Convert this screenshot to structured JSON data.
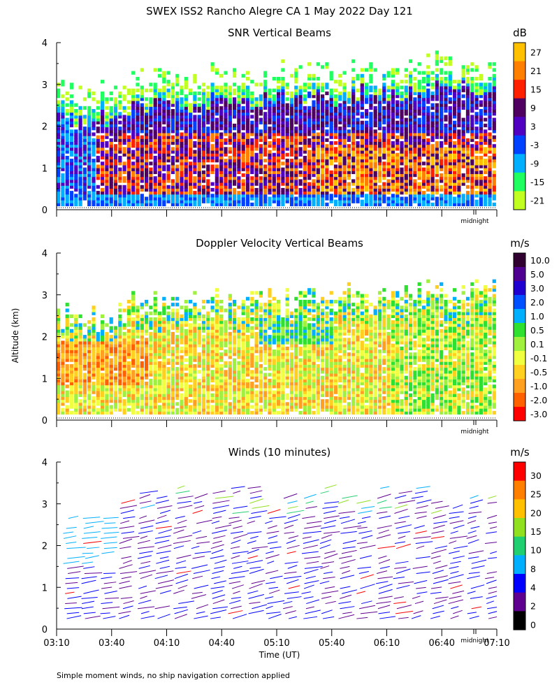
{
  "figure": {
    "title": "SWEX ISS2 Rancho Alegre CA    1 May 2022 Day 121",
    "shared_ylabel": "Altitude (km)",
    "xlabel": "Time (UT)",
    "midnight_label": "midnight",
    "footnote": "Simple moment winds, no ship navigation correction applied"
  },
  "chart_data": [
    {
      "type": "heatmap",
      "id": "snr",
      "title": "SNR Vertical Beams",
      "ylabel": "Altitude (km)",
      "ylim": [
        0,
        4
      ],
      "yticks": [
        "0",
        "1",
        "2",
        "3",
        "4"
      ],
      "xlim_minutes": [
        190,
        430
      ],
      "colorbar": {
        "unit": "dB",
        "labels": [
          "27",
          "21",
          "15",
          "9",
          "3",
          "-3",
          "-9",
          "-15",
          "-21"
        ],
        "colors": [
          "#ffc000",
          "#ff8000",
          "#ff2000",
          "#500060",
          "#5000c0",
          "#0040ff",
          "#00b0ff",
          "#20ff60",
          "#c0ff20"
        ]
      }
    },
    {
      "type": "heatmap",
      "id": "doppler",
      "title": "Doppler Velocity Vertical Beams",
      "ylabel": "Altitude (km)",
      "ylim": [
        0,
        4
      ],
      "yticks": [
        "0",
        "1",
        "2",
        "3",
        "4"
      ],
      "xlim_minutes": [
        190,
        430
      ],
      "colorbar": {
        "unit": "m/s",
        "labels": [
          "10.0",
          "5.0",
          "3.0",
          "2.0",
          "1.0",
          "0.5",
          "0.1",
          "-0.1",
          "-0.5",
          "-1.0",
          "-2.0",
          "-3.0"
        ],
        "colors": [
          "#300030",
          "#500090",
          "#2000d0",
          "#0050ff",
          "#00b0ff",
          "#30e030",
          "#a0f040",
          "#f0ff40",
          "#ffd020",
          "#ffa020",
          "#ff6000",
          "#ff0000"
        ]
      }
    },
    {
      "type": "scatter",
      "id": "winds",
      "title": "Winds (10 minutes)",
      "ylabel": "Altitude (km)",
      "xlabel": "Time (UT)",
      "ylim": [
        0,
        4
      ],
      "yticks": [
        "0",
        "1",
        "2",
        "3",
        "4"
      ],
      "xlim_minutes": [
        190,
        430
      ],
      "xticks": [
        "03:10",
        "03:40",
        "04:10",
        "04:40",
        "05:10",
        "05:40",
        "06:10",
        "06:40",
        "07:10"
      ],
      "colorbar": {
        "unit": "m/s",
        "labels": [
          "30",
          "25",
          "20",
          "15",
          "10",
          "8",
          "4",
          "2",
          "0"
        ],
        "colors": [
          "#ff0000",
          "#ff8000",
          "#ffc000",
          "#90e020",
          "#20d070",
          "#00b0ff",
          "#0000ff",
          "#600090",
          "#000000"
        ]
      }
    }
  ]
}
